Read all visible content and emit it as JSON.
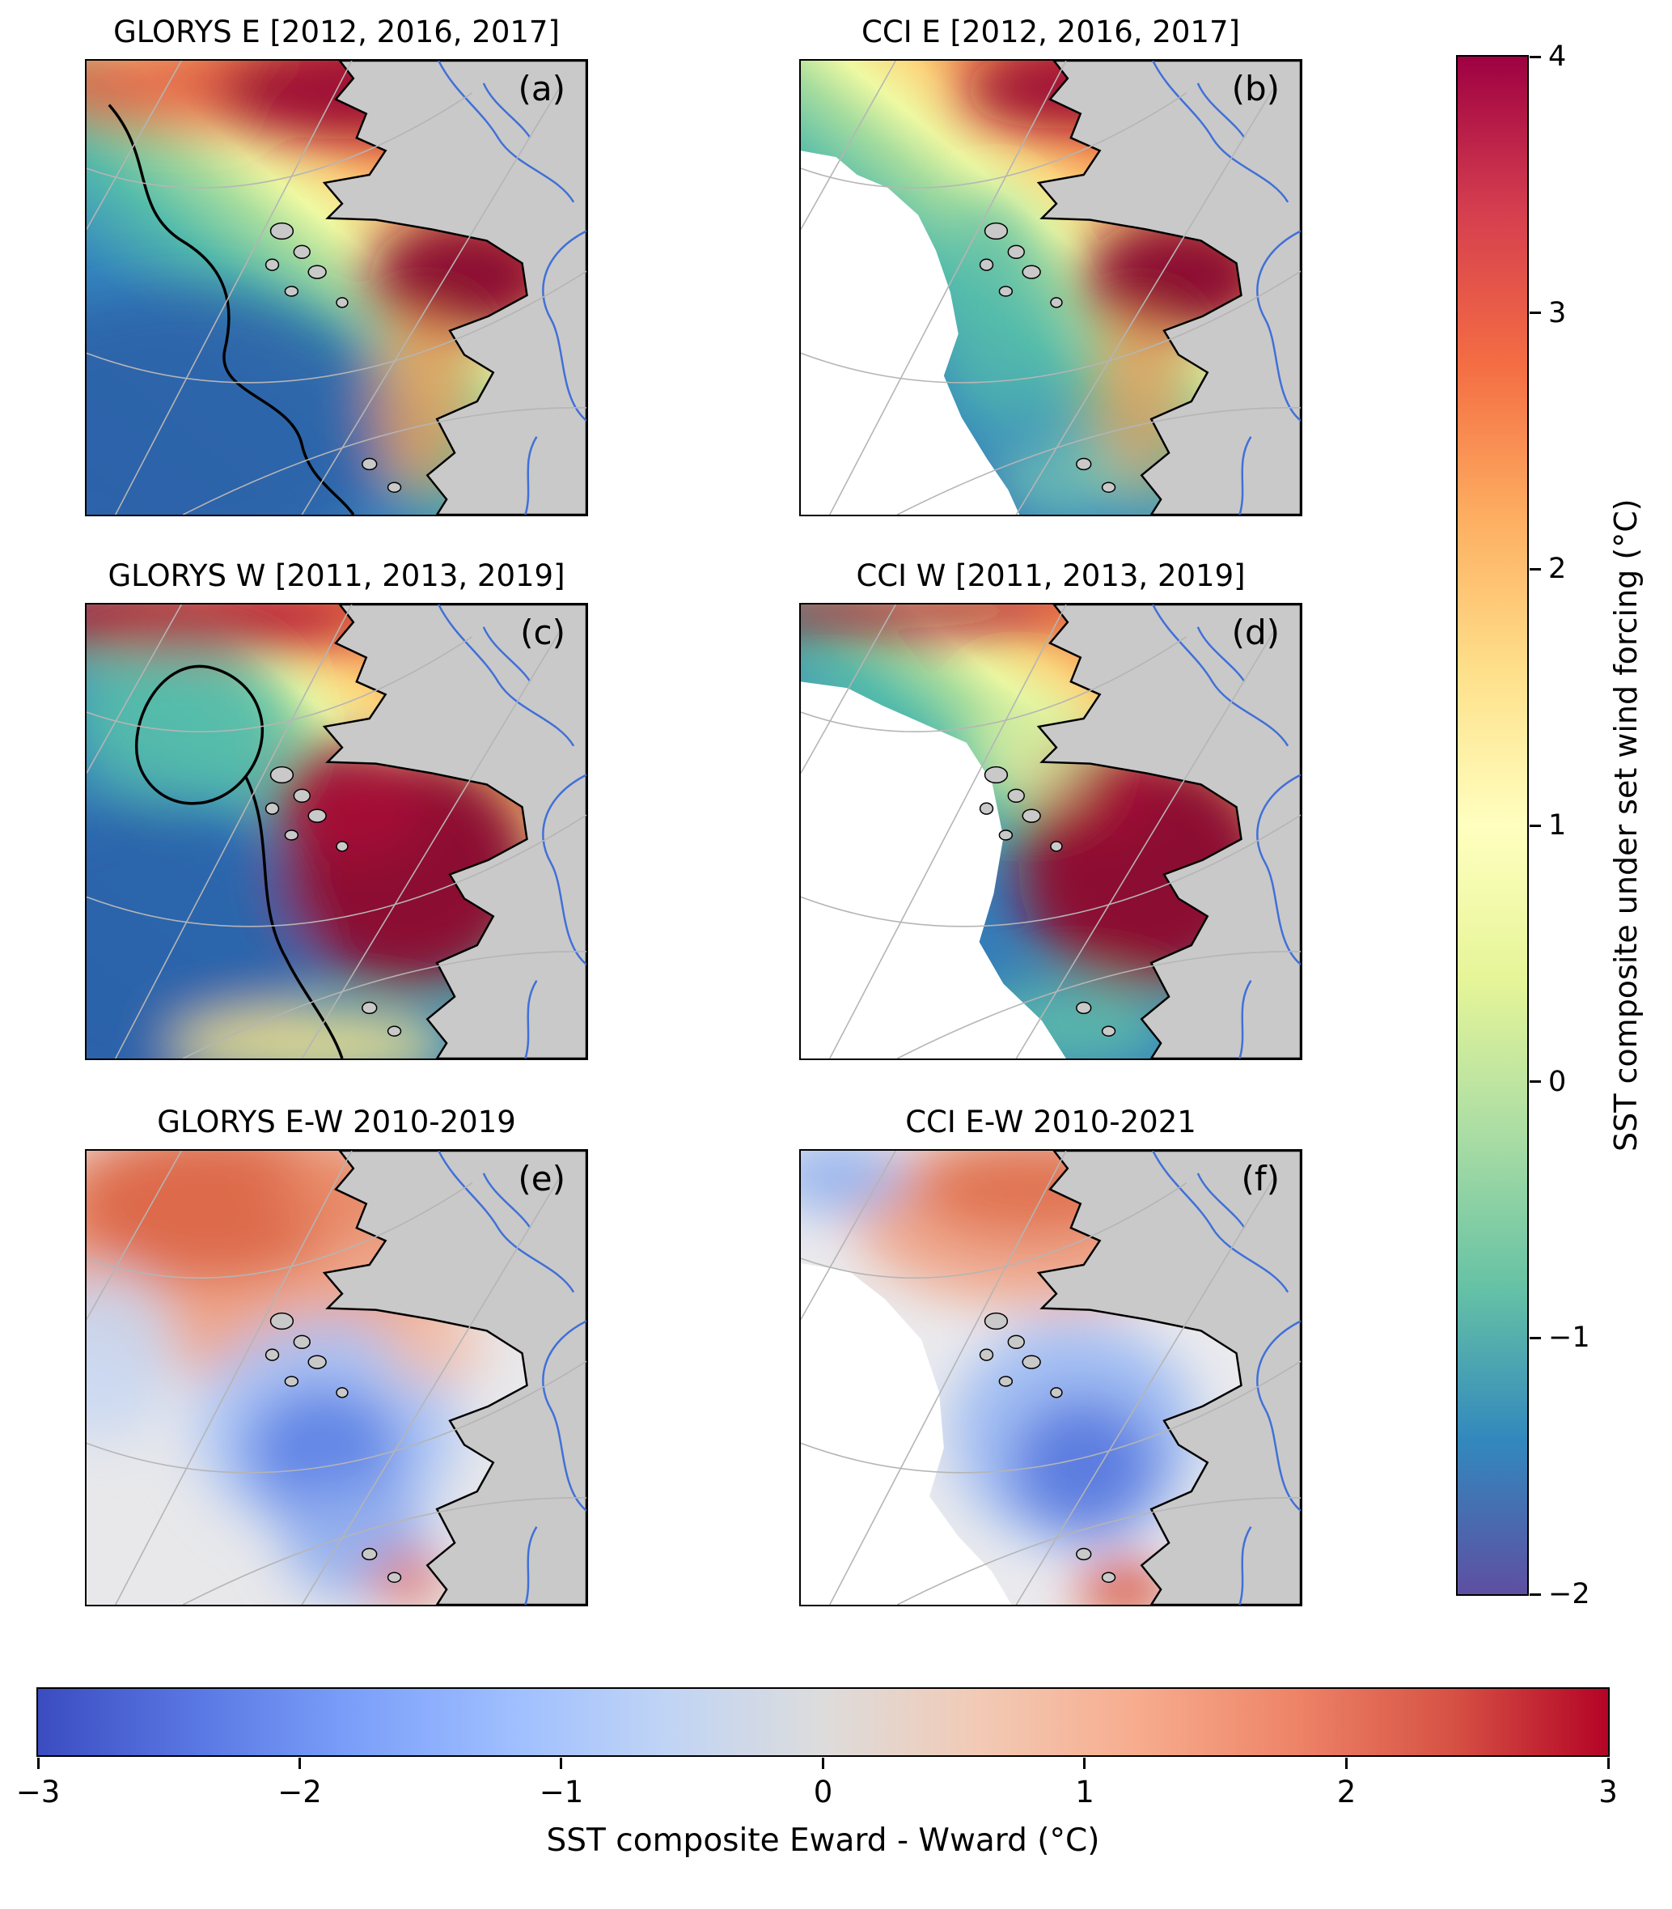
{
  "panels": [
    {
      "id": "a",
      "title": "GLORYS E [2012, 2016, 2017]",
      "corner_label": "(a)"
    },
    {
      "id": "b",
      "title": "CCI E [2012, 2016, 2017]",
      "corner_label": "(b)"
    },
    {
      "id": "c",
      "title": "GLORYS W [2011, 2013, 2019]",
      "corner_label": "(c)"
    },
    {
      "id": "d",
      "title": "CCI W [2011, 2013, 2019]",
      "corner_label": "(d)"
    },
    {
      "id": "e",
      "title": "GLORYS E-W 2010-2019",
      "corner_label": "(e)"
    },
    {
      "id": "f",
      "title": "CCI E-W 2010-2021",
      "corner_label": "(f)"
    }
  ],
  "chart_data": [
    {
      "type": "heatmap",
      "subtype": "polar map SST composites",
      "panel_titles": [
        "GLORYS E [2012, 2016, 2017]",
        "CCI E [2012, 2016, 2017]",
        "GLORYS W [2011, 2013, 2019]",
        "CCI W [2011, 2013, 2019]"
      ],
      "panel_labels": [
        "(a)",
        "(b)",
        "(c)",
        "(d)"
      ],
      "colorbar": {
        "orientation": "vertical",
        "label": "SST composite under set wind forcing (°C)",
        "range": [
          -2,
          4
        ],
        "ticks": [
          4,
          3,
          2,
          1,
          0,
          -1,
          -2
        ],
        "colors": [
          "#9e0142",
          "#d53e4f",
          "#f46d43",
          "#fdae61",
          "#fee08b",
          "#ffffbf",
          "#e6f598",
          "#abdda4",
          "#66c2a5",
          "#3288bd",
          "#5e4fa2"
        ]
      }
    },
    {
      "type": "heatmap",
      "subtype": "polar map SST composite differences",
      "panel_titles": [
        "GLORYS E-W 2010-2019",
        "CCI E-W 2010-2021"
      ],
      "panel_labels": [
        "(e)",
        "(f)"
      ],
      "colorbar": {
        "orientation": "horizontal",
        "label": "SST composite Eward - Wward (°C)",
        "range": [
          -3,
          3
        ],
        "ticks": [
          -3,
          -2,
          -1,
          0,
          1,
          2,
          3
        ],
        "colors": [
          "#3b4cc0",
          "#5977e3",
          "#7b9ff9",
          "#9ebeff",
          "#c0d4f5",
          "#dddcdc",
          "#f2cab5",
          "#f7ac8e",
          "#ee8468",
          "#d65244",
          "#b40426"
        ]
      }
    }
  ]
}
